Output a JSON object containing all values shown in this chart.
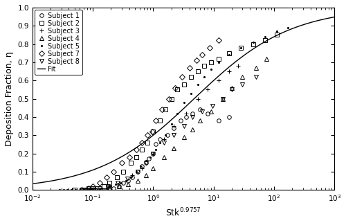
{
  "xlabel": "Stk$^{0.9757}$",
  "ylabel": "Deposition Fraction, η",
  "xlim": [
    0.01,
    1000
  ],
  "ylim": [
    0,
    1.0
  ],
  "yticks": [
    0,
    0.1,
    0.2,
    0.3,
    0.4,
    0.5,
    0.6,
    0.7,
    0.8,
    0.9,
    1
  ],
  "fit_n": 0.5,
  "fit_K": 1.3,
  "subjects": [
    {
      "name": "Subject 1",
      "marker": "o",
      "ms": 4,
      "x": [
        0.065,
        0.07,
        0.075,
        0.085,
        0.09,
        0.1,
        0.11,
        0.12,
        0.14,
        0.17,
        0.19,
        0.22,
        0.27,
        0.32,
        0.38,
        0.45,
        0.55,
        0.65,
        0.75,
        0.85,
        1.0,
        1.1,
        1.3,
        1.7,
        2.2,
        2.8,
        3.5,
        4.5,
        6,
        8,
        12,
        18
      ],
      "y": [
        0.0,
        0.0,
        0.0,
        0.0,
        0.0,
        0.0,
        0.0,
        0.0,
        0.0,
        0.0,
        0.01,
        0.01,
        0.02,
        0.04,
        0.05,
        0.07,
        0.1,
        0.13,
        0.15,
        0.17,
        0.2,
        0.25,
        0.28,
        0.3,
        0.34,
        0.38,
        0.4,
        0.42,
        0.44,
        0.42,
        0.38,
        0.4
      ]
    },
    {
      "name": "Subject 2",
      "marker": "s",
      "ms": 4,
      "x": [
        0.05,
        0.065,
        0.075,
        0.085,
        0.1,
        0.12,
        0.15,
        0.19,
        0.25,
        0.32,
        0.42,
        0.52,
        0.65,
        0.8,
        1.0,
        1.3,
        1.6,
        2.0,
        2.5,
        3.2,
        4.2,
        5.5,
        7,
        9,
        12,
        18,
        28,
        45,
        70,
        110
      ],
      "y": [
        0.0,
        0.0,
        0.0,
        0.01,
        0.01,
        0.01,
        0.02,
        0.04,
        0.07,
        0.1,
        0.15,
        0.18,
        0.22,
        0.26,
        0.32,
        0.38,
        0.44,
        0.5,
        0.55,
        0.58,
        0.62,
        0.65,
        0.68,
        0.7,
        0.72,
        0.75,
        0.78,
        0.8,
        0.82,
        0.85
      ]
    },
    {
      "name": "Subject 3",
      "marker": "+",
      "ms": 5,
      "x": [
        0.045,
        0.065,
        0.085,
        0.1,
        0.14,
        0.19,
        0.28,
        0.45,
        0.65,
        1.0,
        1.5,
        2.2,
        3.5,
        5.5,
        8,
        12,
        18,
        25
      ],
      "y": [
        0.0,
        0.0,
        0.0,
        0.0,
        0.0,
        0.02,
        0.04,
        0.08,
        0.12,
        0.2,
        0.28,
        0.35,
        0.42,
        0.5,
        0.55,
        0.6,
        0.65,
        0.68
      ]
    },
    {
      "name": "Subject 4",
      "marker": "^",
      "ms": 5,
      "x": [
        0.09,
        0.13,
        0.19,
        0.27,
        0.38,
        0.55,
        0.75,
        1.0,
        1.5,
        2.2,
        3.2,
        4.5,
        6,
        9,
        14,
        20,
        30,
        50,
        75
      ],
      "y": [
        0.0,
        0.0,
        0.01,
        0.02,
        0.03,
        0.05,
        0.08,
        0.12,
        0.18,
        0.23,
        0.29,
        0.33,
        0.38,
        0.43,
        0.5,
        0.56,
        0.62,
        0.67,
        0.72
      ]
    },
    {
      "name": "Subject 5",
      "marker": ".",
      "ms": 3,
      "x": [
        0.028,
        0.033,
        0.038,
        0.044,
        0.052,
        0.062,
        0.073,
        0.086,
        0.1,
        0.12,
        0.14,
        0.17,
        0.2,
        0.24,
        0.29,
        0.35,
        0.42,
        0.52,
        0.62,
        0.75,
        0.9,
        1.1,
        1.3,
        1.6,
        2.0,
        2.5,
        3.2,
        4.2,
        5.5,
        7,
        9,
        12,
        18,
        28,
        45,
        70,
        110,
        170
      ],
      "y": [
        0.0,
        0.0,
        0.0,
        0.0,
        0.0,
        0.0,
        0.0,
        0.0,
        0.0,
        0.0,
        0.01,
        0.01,
        0.02,
        0.03,
        0.04,
        0.05,
        0.07,
        0.1,
        0.13,
        0.16,
        0.18,
        0.22,
        0.26,
        0.3,
        0.36,
        0.42,
        0.48,
        0.53,
        0.58,
        0.62,
        0.66,
        0.7,
        0.74,
        0.78,
        0.81,
        0.84,
        0.87,
        0.89
      ]
    },
    {
      "name": "Subject 7",
      "marker": "D",
      "ms": 4,
      "x": [
        0.065,
        0.085,
        0.1,
        0.13,
        0.17,
        0.22,
        0.3,
        0.4,
        0.52,
        0.65,
        0.8,
        0.95,
        1.1,
        1.4,
        1.8,
        2.3,
        3.0,
        4.0,
        5.2,
        6.5,
        8.5,
        12
      ],
      "y": [
        0.0,
        0.01,
        0.02,
        0.04,
        0.07,
        0.1,
        0.15,
        0.18,
        0.22,
        0.26,
        0.3,
        0.32,
        0.38,
        0.44,
        0.5,
        0.56,
        0.62,
        0.67,
        0.71,
        0.74,
        0.78,
        0.82
      ]
    },
    {
      "name": "Subject 8",
      "marker": "v",
      "ms": 4,
      "x": [
        0.09,
        0.13,
        0.18,
        0.26,
        0.37,
        0.55,
        0.75,
        1.0,
        1.5,
        2.2,
        3.2,
        4.5,
        6.5,
        9.5,
        14,
        20,
        30,
        50
      ],
      "y": [
        0.0,
        0.01,
        0.02,
        0.04,
        0.06,
        0.1,
        0.15,
        0.2,
        0.26,
        0.3,
        0.35,
        0.4,
        0.43,
        0.46,
        0.5,
        0.55,
        0.58,
        0.62
      ]
    }
  ],
  "legend_fontsize": 7,
  "tick_fontsize": 7.5,
  "label_fontsize": 9,
  "color": "black"
}
